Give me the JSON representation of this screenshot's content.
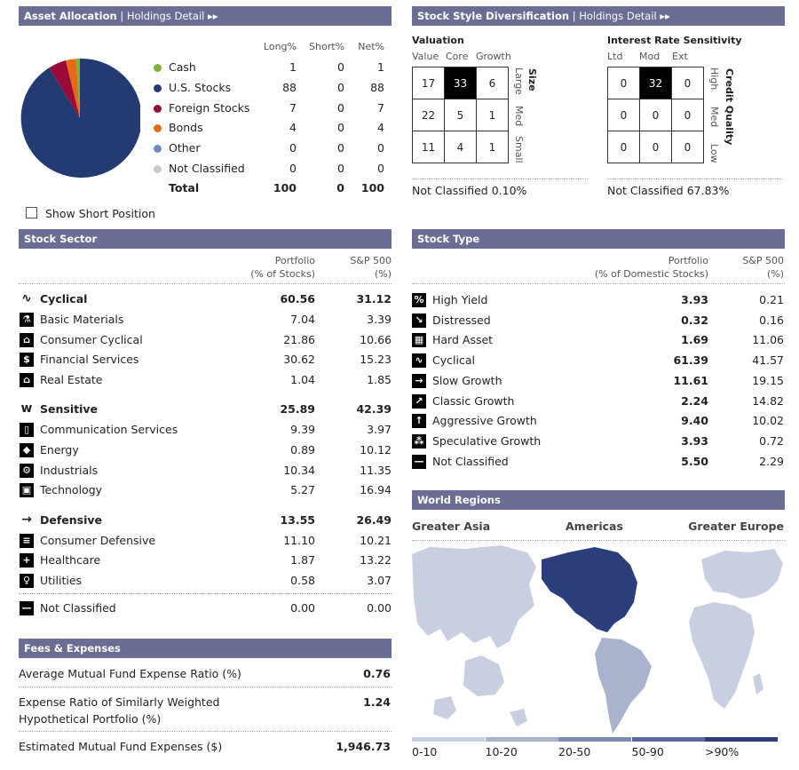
{
  "asset_allocation": {
    "header": "Asset Allocation",
    "link": "| Holdings Detail ▸▸",
    "cols": [
      "Long%",
      "Short%",
      "Net%"
    ],
    "rows": [
      {
        "label": "Cash",
        "long": "1",
        "short": "0",
        "net": "1",
        "color": "#7fb03a"
      },
      {
        "label": "U.S. Stocks",
        "long": "88",
        "short": "0",
        "net": "88",
        "color": "#243a72"
      },
      {
        "label": "Foreign Stocks",
        "long": "7",
        "short": "0",
        "net": "7",
        "color": "#9a0a3a"
      },
      {
        "label": "Bonds",
        "long": "4",
        "short": "0",
        "net": "4",
        "color": "#e66b10"
      },
      {
        "label": "Other",
        "long": "0",
        "short": "0",
        "net": "0",
        "color": "#6f8fb5"
      },
      {
        "label": "Not Classified",
        "long": "0",
        "short": "0",
        "net": "0",
        "color": "#c9c9c9"
      }
    ],
    "total": {
      "label": "Total",
      "long": "100",
      "short": "0",
      "net": "100"
    },
    "show_short": "Show Short Position"
  },
  "style": {
    "header": "Stock Style Diversification",
    "link": "| Holdings Detail ▸▸",
    "valuation": {
      "title": "Valuation",
      "cols": [
        "Value",
        "Core",
        "Growth"
      ],
      "side_title": "Size",
      "side_labels": [
        "Large",
        "Med",
        "Small"
      ],
      "cells": [
        "17",
        "33",
        "6",
        "22",
        "5",
        "1",
        "11",
        "4",
        "1"
      ],
      "highlight": 1,
      "not_classified": "Not Classified 0.10%"
    },
    "interest": {
      "title": "Interest Rate Sensitivity",
      "cols": [
        "Ltd",
        "Mod",
        "Ext"
      ],
      "side_title": "Credit Quality",
      "side_labels": [
        "High",
        "Med",
        "Low"
      ],
      "cells": [
        "0",
        "32",
        "0",
        "0",
        "0",
        "0",
        "0",
        "0",
        "0"
      ],
      "highlight": 1,
      "not_classified": "Not Classified 67.83%"
    }
  },
  "stock_sector": {
    "header": "Stock Sector",
    "col1": [
      "Portfolio",
      "(% of Stocks)"
    ],
    "col2": [
      "S&P 500",
      "(%)"
    ],
    "groups": [
      {
        "label": "Cyclical",
        "icon": "cyclical-icon",
        "glyph": "∿",
        "p": "60.56",
        "s": "31.12",
        "items": [
          {
            "label": "Basic Materials",
            "icon": "basic-materials-icon",
            "glyph": "⚗",
            "p": "7.04",
            "s": "3.39"
          },
          {
            "label": "Consumer Cyclical",
            "icon": "consumer-cyclical-icon",
            "glyph": "⌂",
            "p": "21.86",
            "s": "10.66"
          },
          {
            "label": "Financial Services",
            "icon": "financial-services-icon",
            "glyph": "$",
            "p": "30.62",
            "s": "15.23"
          },
          {
            "label": "Real Estate",
            "icon": "real-estate-icon",
            "glyph": "⌂",
            "p": "1.04",
            "s": "1.85"
          }
        ]
      },
      {
        "label": "Sensitive",
        "icon": "sensitive-icon",
        "glyph": "w",
        "p": "25.89",
        "s": "42.39",
        "items": [
          {
            "label": "Communication Services",
            "icon": "communication-icon",
            "glyph": "▯",
            "p": "9.39",
            "s": "3.97"
          },
          {
            "label": "Energy",
            "icon": "energy-icon",
            "glyph": "◆",
            "p": "0.89",
            "s": "10.12"
          },
          {
            "label": "Industrials",
            "icon": "industrials-icon",
            "glyph": "⚙",
            "p": "10.34",
            "s": "11.35"
          },
          {
            "label": "Technology",
            "icon": "technology-icon",
            "glyph": "▣",
            "p": "5.27",
            "s": "16.94"
          }
        ]
      },
      {
        "label": "Defensive",
        "icon": "defensive-icon",
        "glyph": "→",
        "p": "13.55",
        "s": "26.49",
        "items": [
          {
            "label": "Consumer Defensive",
            "icon": "consumer-defensive-icon",
            "glyph": "≡",
            "p": "11.10",
            "s": "10.21"
          },
          {
            "label": "Healthcare",
            "icon": "healthcare-icon",
            "glyph": "+",
            "p": "1.87",
            "s": "13.22"
          },
          {
            "label": "Utilities",
            "icon": "utilities-icon",
            "glyph": "♀",
            "p": "0.58",
            "s": "3.07"
          }
        ]
      }
    ],
    "not_classified": {
      "label": "Not Classified",
      "p": "0.00",
      "s": "0.00"
    }
  },
  "stock_type": {
    "header": "Stock Type",
    "col1": [
      "Portfolio",
      "(% of Domestic Stocks)"
    ],
    "col2": [
      "S&P 500",
      "(%)"
    ],
    "rows": [
      {
        "label": "High Yield",
        "icon": "high-yield-icon",
        "glyph": "%",
        "p": "3.93",
        "s": "0.21"
      },
      {
        "label": "Distressed",
        "icon": "distressed-icon",
        "glyph": "↘",
        "p": "0.32",
        "s": "0.16"
      },
      {
        "label": "Hard Asset",
        "icon": "hard-asset-icon",
        "glyph": "▦",
        "p": "1.69",
        "s": "11.06"
      },
      {
        "label": "Cyclical",
        "icon": "cyclical-type-icon",
        "glyph": "∿",
        "p": "61.39",
        "s": "41.57"
      },
      {
        "label": "Slow Growth",
        "icon": "slow-growth-icon",
        "glyph": "→",
        "p": "11.61",
        "s": "19.15"
      },
      {
        "label": "Classic Growth",
        "icon": "classic-growth-icon",
        "glyph": "↗",
        "p": "2.24",
        "s": "14.82"
      },
      {
        "label": "Aggressive Growth",
        "icon": "aggressive-growth-icon",
        "glyph": "↑",
        "p": "9.40",
        "s": "10.02"
      },
      {
        "label": "Speculative Growth",
        "icon": "speculative-growth-icon",
        "glyph": "⁂",
        "p": "3.93",
        "s": "0.72"
      },
      {
        "label": "Not Classified",
        "icon": "not-classified-type-icon",
        "glyph": "—",
        "p": "5.50",
        "s": "2.29"
      }
    ]
  },
  "fees": {
    "header": "Fees & Expenses",
    "rows": [
      {
        "label": "Average Mutual Fund Expense Ratio (%)",
        "value": "0.76"
      },
      {
        "label": "Expense Ratio of Similarly Weighted",
        "label2": "Hypothetical Portfolio (%)",
        "value": "1.24"
      },
      {
        "label": "Estimated Mutual Fund Expenses ($)",
        "value": "1,946.73"
      }
    ]
  },
  "world_regions": {
    "header": "World Regions",
    "regions": [
      "Greater Asia",
      "Americas",
      "Greater Europe"
    ],
    "legend": [
      "0-10",
      "10-20",
      "20-50",
      "50-90",
      ">90%"
    ],
    "legend_colors": [
      "#c8cfe0",
      "#a9b3cd",
      "#7d8bb0",
      "#566aa0",
      "#2a3e7c"
    ]
  }
}
